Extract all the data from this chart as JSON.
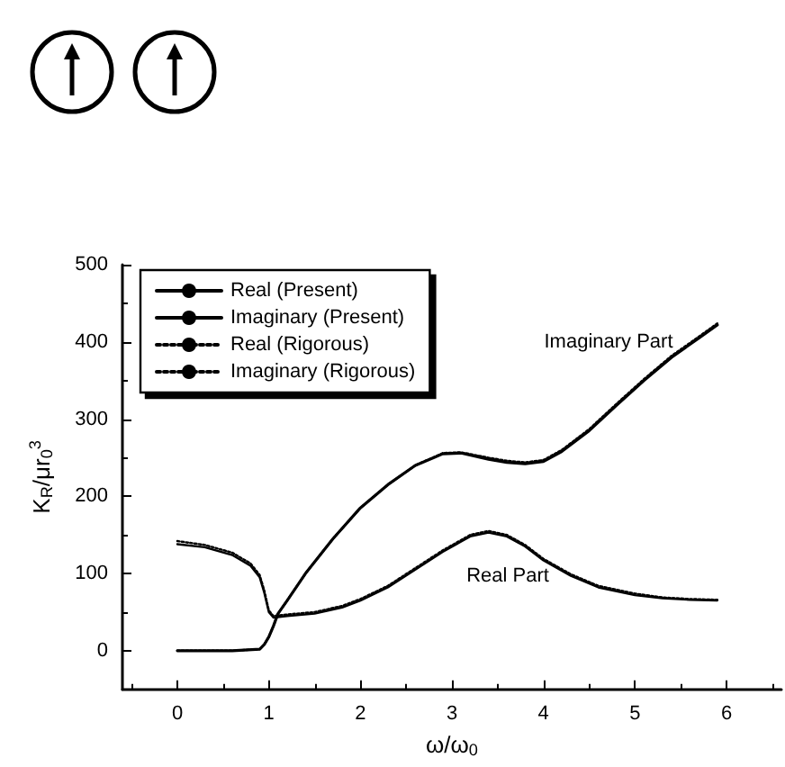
{
  "chart_data": {
    "type": "line",
    "xlabel": "ω/ω$_{0}$",
    "ylabel": "K$_{R}$/μr$_{0}$$^{3}$",
    "xlim": [
      -0.6,
      6.6
    ],
    "xticks": [
      0,
      1,
      2,
      3,
      4,
      5,
      6
    ],
    "ylim": [
      -50,
      500
    ],
    "yticks": [
      0,
      100,
      200,
      300,
      400,
      500
    ],
    "grid": false,
    "legend": "top left",
    "marker": "none",
    "series": [
      {
        "name": "Real (Present)",
        "color": "#000000",
        "line_style": "solid",
        "x": [
          0,
          0.3,
          0.6,
          0.8,
          0.9,
          0.95,
          1.0,
          1.05,
          1.2,
          1.5,
          1.8,
          2.0,
          2.3,
          2.6,
          2.9,
          3.2,
          3.4,
          3.6,
          3.8,
          4.0,
          4.3,
          4.6,
          5.0,
          5.3,
          5.6,
          5.9
        ],
        "values": [
          138,
          134,
          124,
          110,
          95,
          75,
          50,
          43,
          45,
          48,
          56,
          65,
          82,
          105,
          128,
          148,
          153,
          148,
          135,
          117,
          97,
          82,
          72,
          68,
          66,
          65
        ]
      },
      {
        "name": "Imaginary (Present)",
        "color": "#000000",
        "line_style": "solid",
        "x": [
          0,
          0.3,
          0.6,
          0.9,
          0.95,
          1.0,
          1.05,
          1.1,
          1.2,
          1.4,
          1.7,
          2.0,
          2.3,
          2.6,
          2.9,
          3.1,
          3.4,
          3.6,
          3.8,
          4.0,
          4.2,
          4.5,
          4.8,
          5.1,
          5.4,
          5.7,
          5.9
        ],
        "values": [
          0,
          0,
          0,
          2,
          8,
          18,
          32,
          48,
          65,
          100,
          145,
          185,
          215,
          240,
          255,
          256,
          248,
          244,
          242,
          245,
          258,
          285,
          318,
          350,
          380,
          405,
          422
        ]
      },
      {
        "name": "Real (Rigorous)",
        "color": "#000000",
        "line_style": "dotted",
        "x": [
          0,
          0.3,
          0.6,
          0.8,
          0.9,
          0.95,
          1.0,
          1.05,
          1.2,
          1.5,
          1.8,
          2.0,
          2.3,
          2.6,
          2.9,
          3.2,
          3.4,
          3.6,
          3.8,
          4.0,
          4.3,
          4.6,
          5.0,
          5.3,
          5.6,
          5.9
        ],
        "values": [
          142,
          137,
          127,
          113,
          98,
          78,
          52,
          45,
          47,
          50,
          58,
          67,
          84,
          107,
          130,
          150,
          155,
          150,
          137,
          119,
          99,
          84,
          74,
          69,
          67,
          66
        ]
      },
      {
        "name": "Imaginary (Rigorous)",
        "color": "#000000",
        "line_style": "dotted",
        "x": [
          0,
          0.3,
          0.6,
          0.9,
          0.95,
          1.0,
          1.05,
          1.1,
          1.2,
          1.4,
          1.7,
          2.0,
          2.3,
          2.6,
          2.9,
          3.1,
          3.4,
          3.6,
          3.8,
          4.0,
          4.2,
          4.5,
          4.8,
          5.1,
          5.4,
          5.7,
          5.9
        ],
        "values": [
          0,
          0,
          0,
          2,
          8,
          18,
          32,
          48,
          65,
          100,
          145,
          185,
          215,
          240,
          256,
          257,
          250,
          246,
          244,
          247,
          260,
          287,
          320,
          352,
          382,
          407,
          424
        ]
      }
    ],
    "annotations": [
      "Imaginary Part",
      "Real Part"
    ]
  }
}
